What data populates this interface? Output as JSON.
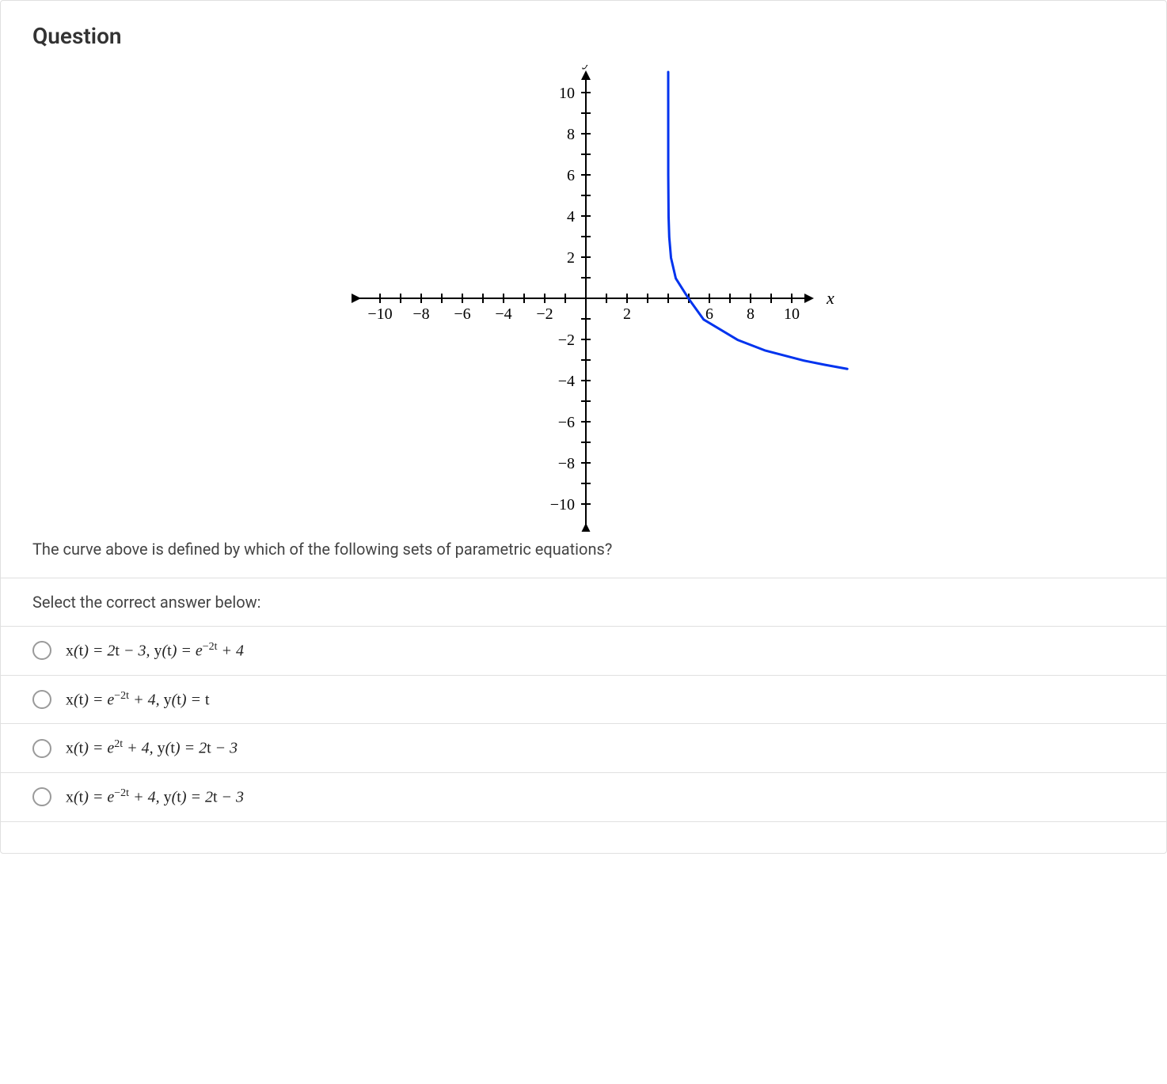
{
  "header": {
    "title": "Question"
  },
  "question_text": "The curve above is defined by which of the following sets of parametric equations?",
  "instruction": "Select the correct answer below:",
  "graph": {
    "type": "parametric-curve",
    "xlim": [
      -11,
      11
    ],
    "ylim": [
      -11,
      11
    ],
    "xtick_labels": [
      "−10",
      "−8",
      "−6",
      "−4",
      "−2",
      "2",
      "6",
      "8",
      "10"
    ],
    "xtick_positions": [
      -10,
      -8,
      -6,
      -4,
      -2,
      2,
      6,
      8,
      10
    ],
    "ytick_labels": [
      "10",
      "8",
      "6",
      "4",
      "2",
      "−2",
      "−4",
      "−6",
      "−8",
      "−10"
    ],
    "ytick_positions": [
      10,
      8,
      6,
      4,
      2,
      -2,
      -4,
      -6,
      -8,
      -10
    ],
    "x_axis_label": "x",
    "y_axis_label": "y",
    "axis_color": "#000000",
    "curve_color": "#0033ee",
    "curve_width": 3,
    "background_color": "#ffffff",
    "tick_fontsize": 20,
    "label_fontsize": 22,
    "curve_points": [
      [
        4.0,
        11.0
      ],
      [
        4.002,
        5.97
      ],
      [
        4.018,
        3.97
      ],
      [
        4.05,
        2.97
      ],
      [
        4.135,
        1.97
      ],
      [
        4.368,
        0.97
      ],
      [
        5.0,
        -0.03
      ],
      [
        5.718,
        -1.03
      ],
      [
        7.389,
        -2.03
      ],
      [
        8.686,
        -2.53
      ],
      [
        10.6,
        -3.03
      ],
      [
        11.6,
        -3.23
      ],
      [
        12.7,
        -3.434
      ]
    ]
  },
  "options": [
    {
      "html": "<span class='rm'>x</span>(<span class='rm'>t</span>) = 2<span class='rm'>t</span> − 3, <span class='rm'>y</span>(<span class='rm'>t</span>) = e<sup>−2t</sup> + 4"
    },
    {
      "html": "<span class='rm'>x</span>(<span class='rm'>t</span>) = e<sup>−2t</sup> + 4, <span class='rm'>y</span>(<span class='rm'>t</span>) = <span class='rm'>t</span>"
    },
    {
      "html": "<span class='rm'>x</span>(<span class='rm'>t</span>) = e<sup>2t</sup> + 4, <span class='rm'>y</span>(<span class='rm'>t</span>) = 2<span class='rm'>t</span> − 3"
    },
    {
      "html": "<span class='rm'>x</span>(<span class='rm'>t</span>) = e<sup>−2t</sup> + 4, <span class='rm'>y</span>(<span class='rm'>t</span>) = 2<span class='rm'>t</span> − 3"
    }
  ]
}
